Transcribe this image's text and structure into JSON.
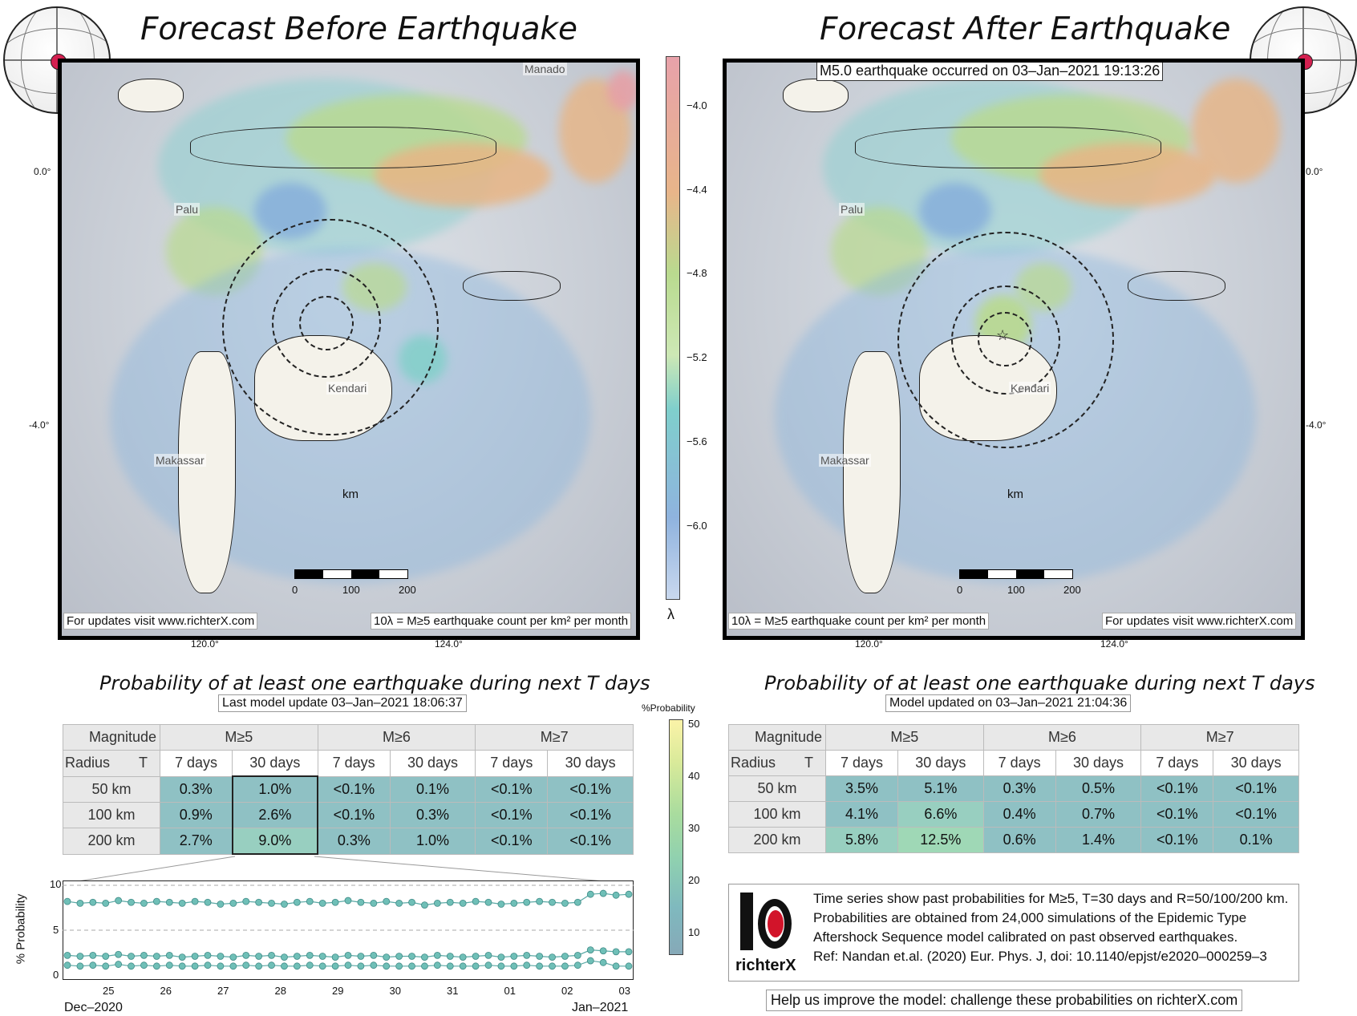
{
  "left": {
    "title": "Forecast Before Earthquake",
    "footer_left": "For updates visit www.richterX.com",
    "footer_right": "10λ = M≥5 earthquake count per km² per month",
    "cities": [
      "Manado",
      "Palu",
      "Kendari",
      "Makassar"
    ],
    "scale": {
      "unit": "km",
      "ticks": [
        "0",
        "100",
        "200"
      ]
    },
    "lat_ticks": [
      "0.0°",
      "-4.0°"
    ],
    "lon_ticks": [
      "120.0°",
      "124.0°"
    ]
  },
  "right": {
    "title": "Forecast After Earthquake",
    "event": "M5.0 earthquake occurred on 03–Jan–2021 19:13:26",
    "footer_left": "10λ = M≥5 earthquake count per km² per month",
    "footer_right": "For updates visit www.richterX.com",
    "cities": [
      "Palu",
      "Kendari",
      "Makassar"
    ],
    "scale": {
      "unit": "km",
      "ticks": [
        "0",
        "100",
        "200"
      ]
    },
    "lat_ticks": [
      "0.0°",
      "-4.0°"
    ],
    "lon_ticks": [
      "120.0°",
      "124.0°"
    ]
  },
  "lambda_bar": {
    "label": "λ",
    "ticks": [
      "−4.0",
      "−4.4",
      "−4.8",
      "−5.2",
      "−5.6",
      "−6.0"
    ]
  },
  "prob_bar": {
    "label": "%Probability",
    "ticks": [
      "50",
      "40",
      "30",
      "20",
      "10"
    ]
  },
  "table_left": {
    "title": "Probability of at least one earthquake during next T days",
    "subtitle": "Last model update 03–Jan–2021 18:06:37",
    "corner_top": "Magnitude",
    "corner_left": "Radius",
    "corner_t": "T",
    "magnitudes": [
      "M≥5",
      "M≥6",
      "M≥7"
    ],
    "periods": [
      "7 days",
      "30 days",
      "7 days",
      "30 days",
      "7 days",
      "30 days"
    ],
    "rows": [
      {
        "radius": "50 km",
        "values": [
          "0.3%",
          "1.0%",
          "<0.1%",
          "0.1%",
          "<0.1%",
          "<0.1%"
        ]
      },
      {
        "radius": "100 km",
        "values": [
          "0.9%",
          "2.6%",
          "<0.1%",
          "0.3%",
          "<0.1%",
          "<0.1%"
        ]
      },
      {
        "radius": "200 km",
        "values": [
          "2.7%",
          "9.0%",
          "0.3%",
          "1.0%",
          "<0.1%",
          "<0.1%"
        ]
      }
    ]
  },
  "table_right": {
    "title": "Probability of at least one earthquake during next T days",
    "subtitle": "Model updated on 03–Jan–2021 21:04:36",
    "corner_top": "Magnitude",
    "corner_left": "Radius",
    "corner_t": "T",
    "magnitudes": [
      "M≥5",
      "M≥6",
      "M≥7"
    ],
    "periods": [
      "7 days",
      "30 days",
      "7 days",
      "30 days",
      "7 days",
      "30 days"
    ],
    "rows": [
      {
        "radius": "50 km",
        "values": [
          "3.5%",
          "5.1%",
          "0.3%",
          "0.5%",
          "<0.1%",
          "<0.1%"
        ]
      },
      {
        "radius": "100 km",
        "values": [
          "4.1%",
          "6.6%",
          "0.4%",
          "0.7%",
          "<0.1%",
          "<0.1%"
        ]
      },
      {
        "radius": "200 km",
        "values": [
          "5.8%",
          "12.5%",
          "0.6%",
          "1.4%",
          "<0.1%",
          "0.1%"
        ]
      }
    ]
  },
  "timeseries": {
    "ylabel": "% Probability",
    "yticks": [
      "10",
      "5",
      "0"
    ],
    "xticks": [
      "25",
      "26",
      "27",
      "28",
      "29",
      "30",
      "31",
      "01",
      "02",
      "03"
    ],
    "xlabel_left": "Dec–2020",
    "xlabel_right": "Jan–2021"
  },
  "chart_data": {
    "type": "line",
    "ylabel": "% Probability",
    "ylim": [
      0,
      10
    ],
    "x_range": [
      "2020-12-24",
      "2021-01-03"
    ],
    "series": [
      {
        "values": [
          8.2,
          8.0,
          8.1,
          8.0,
          8.3,
          8.1,
          8.0,
          8.2,
          8.1,
          8.0,
          8.2,
          8.1,
          7.9,
          8.0,
          8.2,
          8.1,
          8.0,
          7.9,
          8.1,
          8.2,
          8.0,
          8.1,
          8.3,
          8.1,
          8.0,
          8.2,
          8.0,
          8.1,
          7.8,
          8.0,
          8.1,
          8.0,
          8.2,
          8.1,
          7.9,
          8.0,
          8.1,
          8.2,
          8.1,
          8.0,
          8.1,
          9.0,
          9.1,
          8.9,
          9.0
        ]
      },
      {
        "values": [
          2.2,
          2.1,
          2.2,
          2.1,
          2.3,
          2.1,
          2.2,
          2.1,
          2.2,
          2.0,
          2.1,
          2.2,
          2.1,
          2.0,
          2.2,
          2.1,
          2.2,
          2.0,
          2.1,
          2.2,
          2.1,
          2.0,
          2.2,
          2.1,
          2.2,
          2.0,
          2.1,
          2.1,
          2.0,
          2.2,
          2.1,
          2.0,
          2.1,
          2.2,
          2.0,
          2.1,
          2.2,
          2.1,
          2.0,
          2.1,
          2.2,
          2.8,
          2.7,
          2.6,
          2.6
        ]
      },
      {
        "values": [
          1.1,
          1.0,
          1.1,
          1.0,
          1.2,
          1.0,
          1.1,
          1.0,
          1.1,
          1.0,
          1.0,
          1.1,
          1.0,
          1.0,
          1.1,
          1.0,
          1.1,
          1.0,
          1.0,
          1.1,
          1.0,
          1.0,
          1.1,
          1.0,
          1.1,
          1.0,
          1.0,
          1.0,
          1.0,
          1.1,
          1.0,
          1.0,
          1.0,
          1.1,
          1.0,
          1.0,
          1.1,
          1.0,
          1.0,
          1.0,
          1.1,
          1.6,
          1.4,
          1.0,
          1.0
        ]
      }
    ]
  },
  "info": {
    "logo": "richterX",
    "lines": [
      "Time series show past probabilities for M≥5, T=30 days and R=50/100/200 km.",
      "Probabilities are obtained from 24,000 simulations of the Epidemic Type",
      "Aftershock Sequence model calibrated on past observed earthquakes.",
      "Ref: Nandan et.al. (2020) Eur. Phys. J, doi: 10.1140/epjst/e2020–000259–3"
    ],
    "help": "Help us improve the model: challenge these probabilities on richterX.com"
  },
  "colors": {
    "teal": "#7fc4c8",
    "blue": "#8fb3de",
    "green": "#b5d98a",
    "orange": "#e8b07a",
    "pink": "#e6a0a6",
    "point": "#6fbfb7"
  }
}
